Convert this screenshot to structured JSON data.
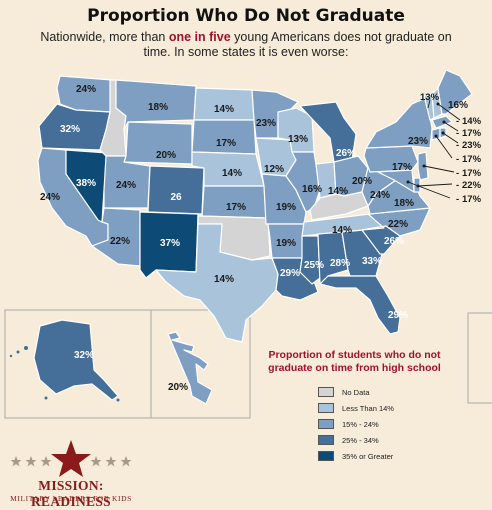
{
  "header": {
    "title": "Proportion Who Do Not Graduate",
    "subtitle_pre": "Nationwide, more than ",
    "subtitle_highlight": "one in five",
    "subtitle_post": " young Americans does not graduate on time. In some states it is even worse:"
  },
  "legend": {
    "title": "Proportion of students who do not graduate on time from high school",
    "items": [
      {
        "label": "No Data",
        "color": "#d4d4d4"
      },
      {
        "label": "Less Than 14%",
        "color": "#a8c3da"
      },
      {
        "label": "15% - 24%",
        "color": "#7e9fc2"
      },
      {
        "label": "25% - 34%",
        "color": "#456e99"
      },
      {
        "label": "35% or Greater",
        "color": "#0d4a75"
      }
    ]
  },
  "states": {
    "WA": {
      "value": "24%",
      "color": "#7e9fc2"
    },
    "OR": {
      "value": "32%",
      "color": "#456e99"
    },
    "CA": {
      "value": "24%",
      "color": "#7e9fc2"
    },
    "NV": {
      "value": "38%",
      "color": "#0d4a75"
    },
    "ID": {
      "value": "",
      "color": "#d4d4d4"
    },
    "MT": {
      "value": "18%",
      "color": "#7e9fc2"
    },
    "WY": {
      "value": "20%",
      "color": "#7e9fc2"
    },
    "UT": {
      "value": "24%",
      "color": "#7e9fc2"
    },
    "AZ": {
      "value": "22%",
      "color": "#7e9fc2"
    },
    "CO": {
      "value": "26",
      "color": "#456e99"
    },
    "NM": {
      "value": "37%",
      "color": "#0d4a75"
    },
    "ND": {
      "value": "14%",
      "color": "#a8c3da"
    },
    "SD": {
      "value": "17%",
      "color": "#7e9fc2"
    },
    "NE": {
      "value": "14%",
      "color": "#a8c3da"
    },
    "KS": {
      "value": "17%",
      "color": "#7e9fc2"
    },
    "OK": {
      "value": "",
      "color": "#d4d4d4"
    },
    "TX": {
      "value": "14%",
      "color": "#a8c3da"
    },
    "MN": {
      "value": "23%",
      "color": "#7e9fc2"
    },
    "IA": {
      "value": "12%",
      "color": "#a8c3da"
    },
    "MO": {
      "value": "19%",
      "color": "#7e9fc2"
    },
    "AR": {
      "value": "19%",
      "color": "#7e9fc2"
    },
    "LA": {
      "value": "29%",
      "color": "#456e99"
    },
    "WI": {
      "value": "13%",
      "color": "#a8c3da"
    },
    "IL": {
      "value": "16%",
      "color": "#7e9fc2"
    },
    "MI": {
      "value": "26%",
      "color": "#456e99"
    },
    "IN": {
      "value": "14%",
      "color": "#a8c3da"
    },
    "OH": {
      "value": "20%",
      "color": "#7e9fc2"
    },
    "KY": {
      "value": "",
      "color": "#d4d4d4"
    },
    "TN": {
      "value": "14%",
      "color": "#a8c3da"
    },
    "MS": {
      "value": "25%",
      "color": "#456e99"
    },
    "AL": {
      "value": "28%",
      "color": "#456e99"
    },
    "GA": {
      "value": "33%",
      "color": "#456e99"
    },
    "FL": {
      "value": "29%",
      "color": "#456e99"
    },
    "SC": {
      "value": "26%",
      "color": "#456e99"
    },
    "NC": {
      "value": "22%",
      "color": "#7e9fc2"
    },
    "VA": {
      "value": "18%",
      "color": "#7e9fc2"
    },
    "WV": {
      "value": "24%",
      "color": "#7e9fc2"
    },
    "PA": {
      "value": "17%",
      "color": "#7e9fc2"
    },
    "NY": {
      "value": "23%",
      "color": "#7e9fc2"
    },
    "ME": {
      "value": "16%",
      "color": "#7e9fc2"
    },
    "VT": {
      "value": "13%",
      "color": "#a8c3da"
    },
    "NH": {
      "value": "14%",
      "color": "#a8c3da"
    },
    "MA": {
      "value": "17%",
      "color": "#7e9fc2"
    },
    "RI": {
      "value": "23%",
      "color": "#7e9fc2"
    },
    "CT": {
      "value": "17%",
      "color": "#7e9fc2"
    },
    "NJ": {
      "value": "17%",
      "color": "#7e9fc2"
    },
    "DE": {
      "value": "22%",
      "color": "#7e9fc2"
    },
    "MD": {
      "value": "17%",
      "color": "#7e9fc2"
    },
    "AK": {
      "value": "32%",
      "color": "#456e99"
    },
    "HI": {
      "value": "20%",
      "color": "#7e9fc2"
    }
  },
  "logo": {
    "name": "MISSION: READINESS",
    "tagline": "MILITARY LEADERS FOR KIDS",
    "colors": {
      "primary": "#8b1a1a",
      "star": "#a89a86"
    }
  }
}
